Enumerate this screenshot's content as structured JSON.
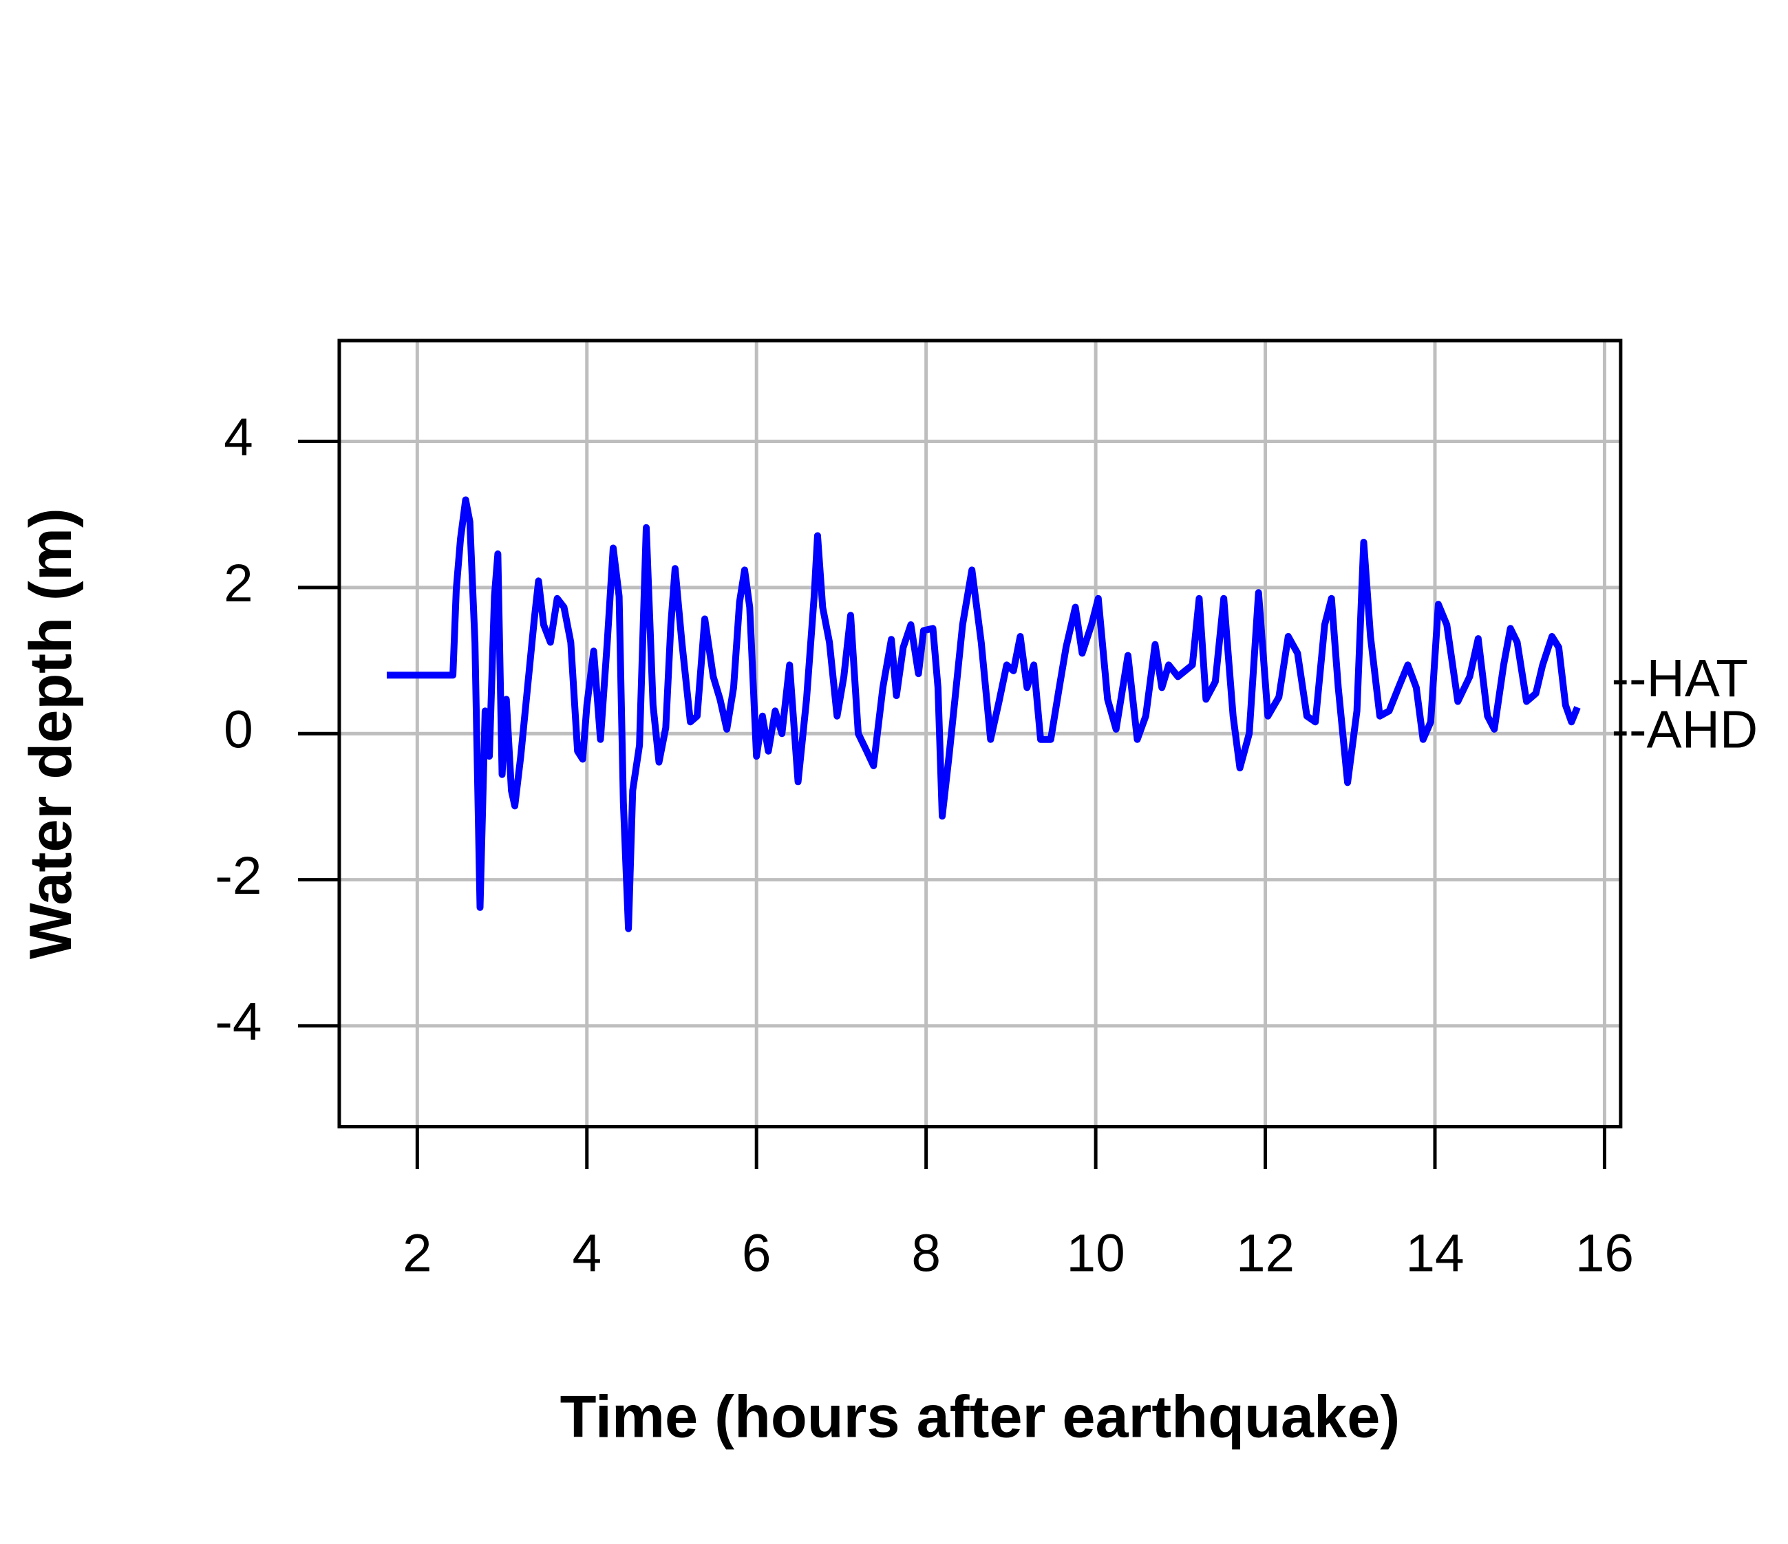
{
  "chart_data": {
    "type": "line",
    "x_label": "Time (hours after earthquake)",
    "y_label": "Water depth (m)",
    "xlim": [
      1.08,
      16.19
    ],
    "ylim": [
      -5.38,
      5.38
    ],
    "xticks": [
      2,
      4,
      6,
      8,
      10,
      12,
      14,
      16
    ],
    "yticks": [
      -4,
      -2,
      0,
      2,
      4
    ],
    "grid": true,
    "annotations": [
      {
        "text": "--HAT",
        "y": 0.7
      },
      {
        "text": "--AHD",
        "y": 0
      }
    ],
    "series": [
      {
        "name": "Water depth",
        "color": "#0000ff",
        "x": [
          1.64,
          2.42,
          2.46,
          2.51,
          2.57,
          2.62,
          2.68,
          2.74,
          2.8,
          2.85,
          2.91,
          2.95,
          3.0,
          3.05,
          3.11,
          3.15,
          3.22,
          3.3,
          3.38,
          3.43,
          3.49,
          3.57,
          3.65,
          3.73,
          3.81,
          3.89,
          3.95,
          4.0,
          4.08,
          4.16,
          4.24,
          4.31,
          4.38,
          4.43,
          4.49,
          4.54,
          4.62,
          4.7,
          4.78,
          4.85,
          4.93,
          4.99,
          5.04,
          5.12,
          5.22,
          5.3,
          5.39,
          5.49,
          5.57,
          5.65,
          5.73,
          5.8,
          5.86,
          5.92,
          6.0,
          6.07,
          6.14,
          6.22,
          6.3,
          6.39,
          6.49,
          6.59,
          6.68,
          6.72,
          6.78,
          6.86,
          6.95,
          7.03,
          7.11,
          7.2,
          7.3,
          7.38,
          7.49,
          7.59,
          7.65,
          7.73,
          7.82,
          7.91,
          7.97,
          8.08,
          8.14,
          8.19,
          8.27,
          8.34,
          8.43,
          8.54,
          8.65,
          8.76,
          8.86,
          8.95,
          9.03,
          9.11,
          9.19,
          9.27,
          9.35,
          9.47,
          9.57,
          9.65,
          9.76,
          9.84,
          9.95,
          10.03,
          10.14,
          10.24,
          10.38,
          10.49,
          10.59,
          10.7,
          10.78,
          10.86,
          10.97,
          11.14,
          11.22,
          11.3,
          11.41,
          11.51,
          11.62,
          11.7,
          11.81,
          11.92,
          12.03,
          12.16,
          12.27,
          12.38,
          12.49,
          12.59,
          12.7,
          12.78,
          12.86,
          12.97,
          13.08,
          13.16,
          13.24,
          13.35,
          13.46,
          13.57,
          13.68,
          13.78,
          13.86,
          13.95,
          14.04,
          14.14,
          14.27,
          14.41,
          14.51,
          14.62,
          14.7,
          14.81,
          14.89,
          14.97,
          15.08,
          15.19,
          15.27,
          15.38,
          15.46,
          15.54,
          15.61,
          15.68
        ],
        "values": [
          0.8,
          0.8,
          1.98,
          2.67,
          3.2,
          2.9,
          1.25,
          -2.38,
          0.31,
          -0.31,
          1.88,
          2.46,
          -0.56,
          0.47,
          -0.78,
          -0.99,
          -0.31,
          0.63,
          1.57,
          2.09,
          1.49,
          1.25,
          1.85,
          1.73,
          1.25,
          -0.24,
          -0.35,
          0.39,
          1.13,
          -0.08,
          1.25,
          2.54,
          1.88,
          -0.94,
          -2.67,
          -0.78,
          -0.16,
          2.82,
          0.39,
          -0.39,
          0.08,
          1.49,
          2.26,
          1.25,
          0.16,
          0.24,
          1.57,
          0.78,
          0.47,
          0.06,
          0.63,
          1.8,
          2.24,
          1.73,
          -0.31,
          0.24,
          -0.24,
          0.31,
          0,
          0.94,
          -0.66,
          0.47,
          1.88,
          2.71,
          1.73,
          1.25,
          0.24,
          0.78,
          1.62,
          0,
          -0.24,
          -0.44,
          0.63,
          1.29,
          0.52,
          1.18,
          1.49,
          0.82,
          1.41,
          1.44,
          0.63,
          -1.13,
          -0.31,
          0.47,
          1.49,
          2.24,
          1.25,
          -0.08,
          0.44,
          0.94,
          0.86,
          1.33,
          0.63,
          0.94,
          -0.08,
          -0.08,
          0.63,
          1.18,
          1.73,
          1.1,
          1.49,
          1.85,
          0.47,
          0.06,
          1.07,
          -0.08,
          0.24,
          1.22,
          0.63,
          0.94,
          0.78,
          0.94,
          1.85,
          0.47,
          0.71,
          1.85,
          0.24,
          -0.47,
          0,
          1.93,
          0.24,
          0.5,
          1.33,
          1.1,
          0.24,
          0.16,
          1.49,
          1.85,
          0.63,
          -0.67,
          0.31,
          2.62,
          1.33,
          0.24,
          0.31,
          0.63,
          0.94,
          0.63,
          -0.08,
          0.16,
          1.77,
          1.49,
          0.44,
          0.78,
          1.3,
          0.24,
          0.06,
          0.94,
          1.44,
          1.25,
          0.44,
          0.55,
          0.94,
          1.33,
          1.18,
          0.39,
          0.16,
          0.36
        ]
      }
    ]
  }
}
